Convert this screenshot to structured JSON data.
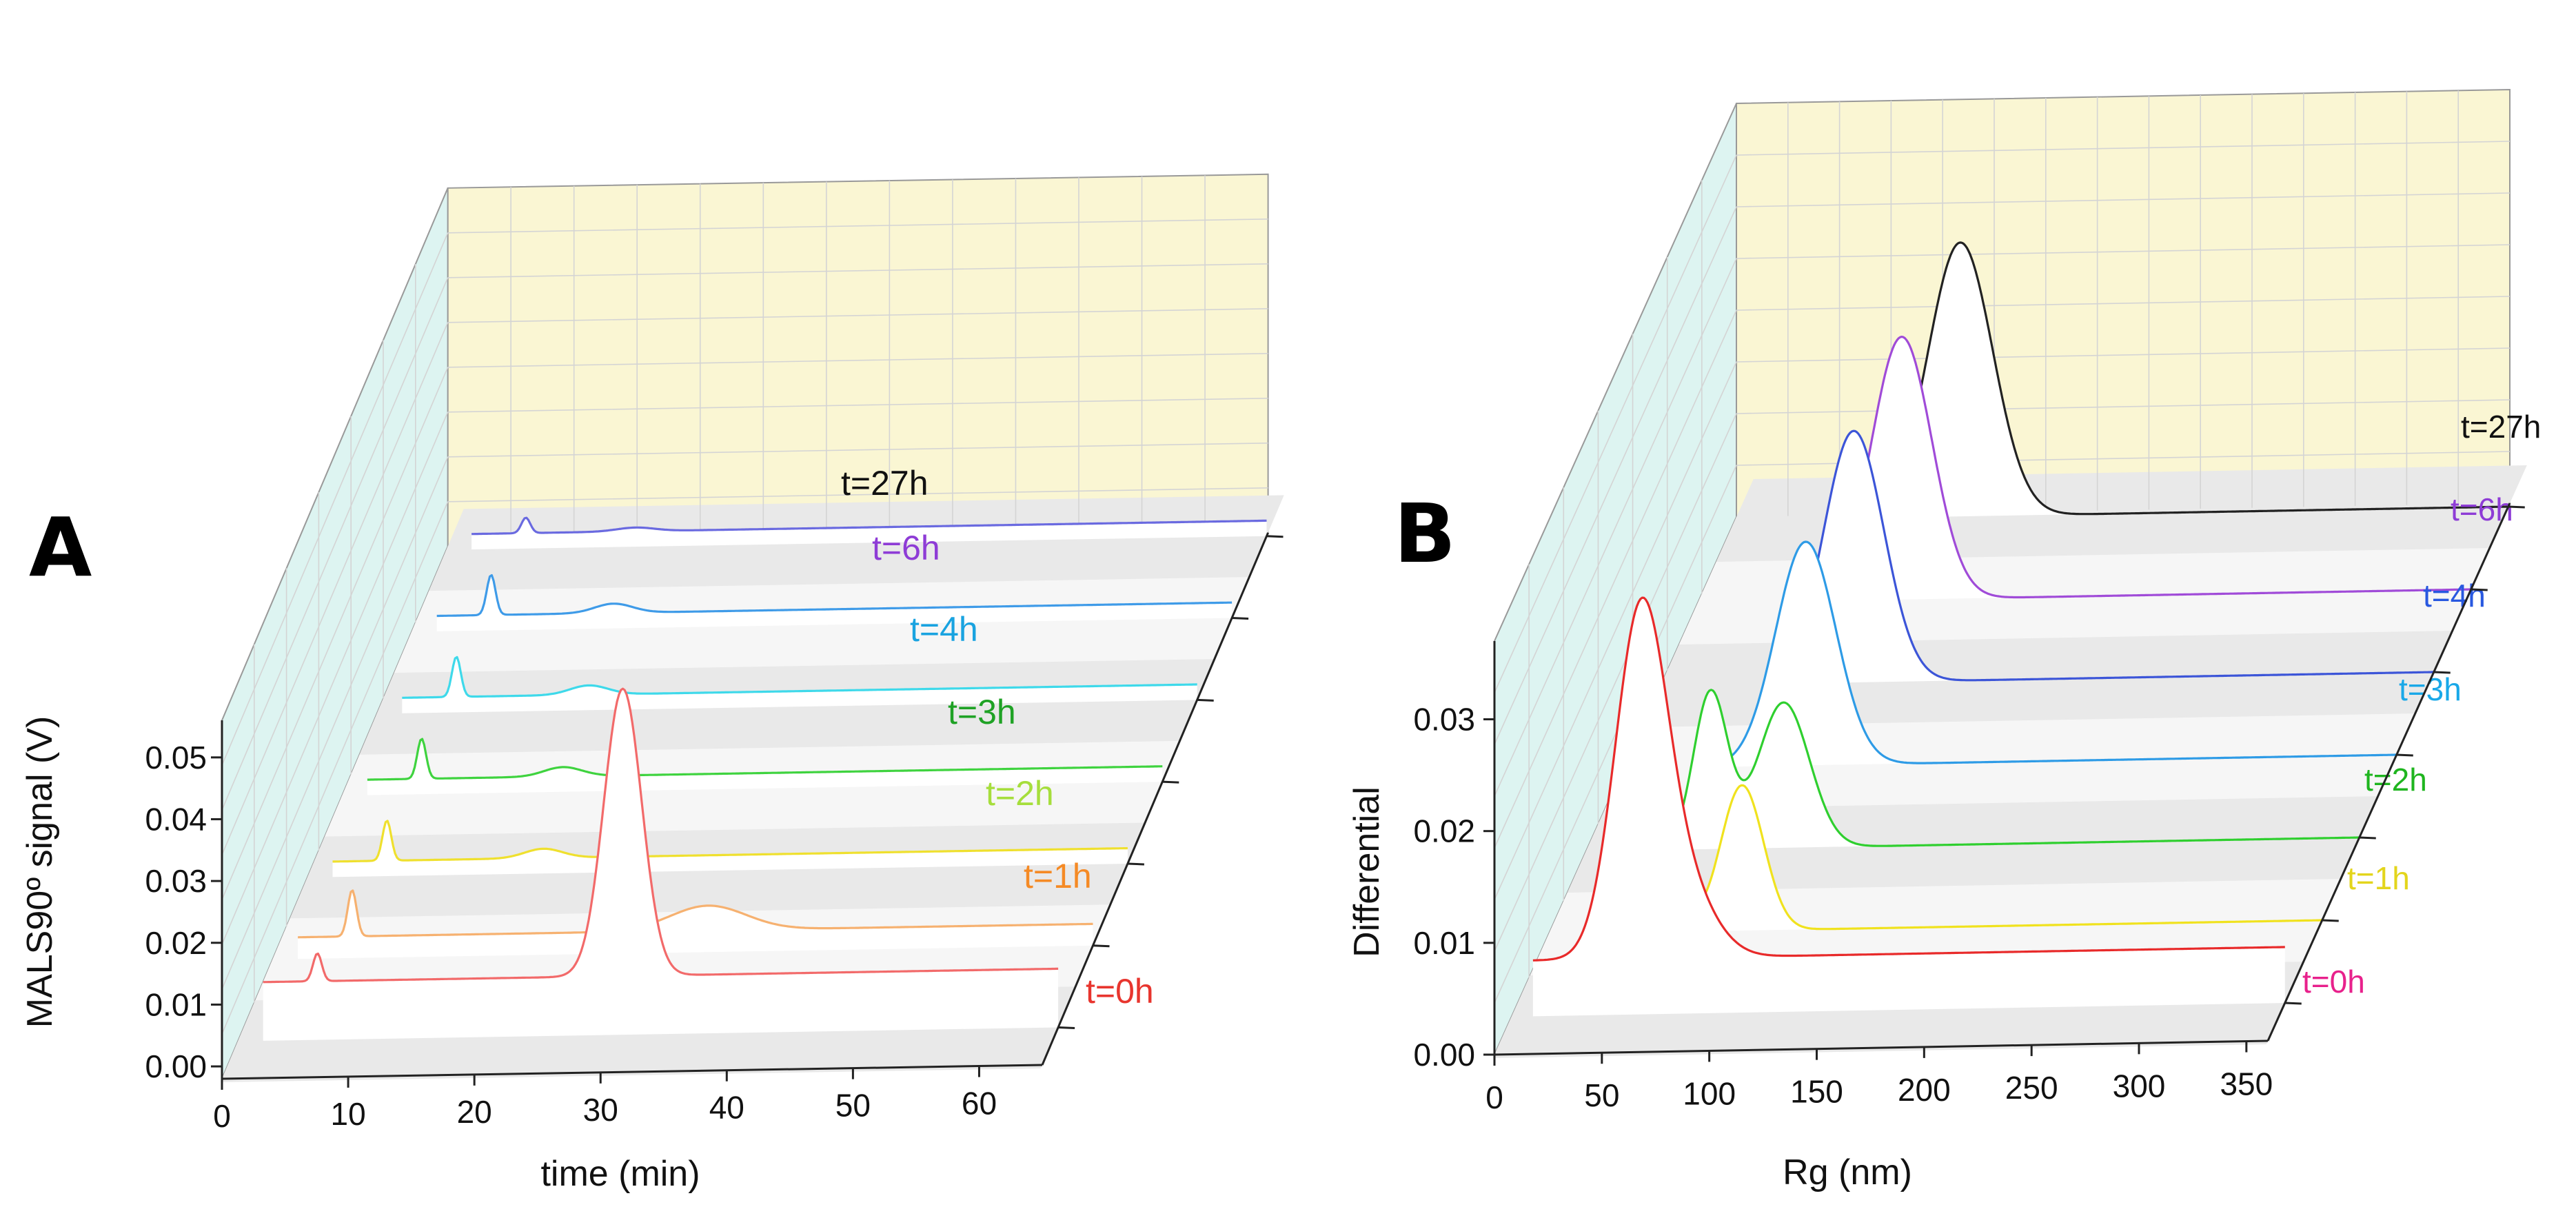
{
  "colors": {
    "back_wall": "#FAF6D3",
    "side_wall": "#DDF4F1",
    "floor": "#F1F1F1",
    "grid": "#D4D4D4",
    "axis": "#222222"
  },
  "chart_data": [
    {
      "panel_label": "A",
      "type": "line",
      "layout": "3d-waterfall",
      "xlabel": "time (min)",
      "ylabel": "MALS90º signal (V)",
      "xlim": [
        0,
        65
      ],
      "ylim": [
        -0.002,
        0.056
      ],
      "x_ticks": [
        "0",
        "10",
        "20",
        "30",
        "40",
        "50",
        "60"
      ],
      "y_ticks": [
        "0.00",
        "0.01",
        "0.02",
        "0.03",
        "0.04",
        "0.05"
      ],
      "series": [
        {
          "name": "t=0h",
          "color": "#F26A6A",
          "label_color": "#E8352E",
          "x_start": 2,
          "baseline": 0.0075,
          "peaks": [
            {
              "x": 6.3,
              "h": 0.0045,
              "w": 0.35
            },
            {
              "x": 30.5,
              "h": 0.0465,
              "w": 1.5
            }
          ]
        },
        {
          "name": "t=1h",
          "color": "#F6B170",
          "label_color": "#F58A25",
          "x_start": 2,
          "baseline": 0.0015,
          "peaks": [
            {
              "x": 6.3,
              "h": 0.0075,
              "w": 0.35
            },
            {
              "x": 34.5,
              "h": 0.004,
              "w": 3.0
            }
          ]
        },
        {
          "name": "t=2h",
          "color": "#EFE02E",
          "label_color": "#A6DE3C",
          "x_start": 2,
          "baseline": 0.0005,
          "peaks": [
            {
              "x": 6.3,
              "h": 0.0065,
              "w": 0.35
            },
            {
              "x": 18.7,
              "h": 0.0015,
              "w": 1.5
            }
          ]
        },
        {
          "name": "t=3h",
          "color": "#3FD33F",
          "label_color": "#1FA225",
          "x_start": 2,
          "baseline": 0.0005,
          "peaks": [
            {
              "x": 6.3,
              "h": 0.0065,
              "w": 0.35
            },
            {
              "x": 17.5,
              "h": 0.0015,
              "w": 1.5
            }
          ]
        },
        {
          "name": "t=4h",
          "color": "#3ED9EA",
          "label_color": "#19A3E0",
          "x_start": 2,
          "baseline": 0.0005,
          "peaks": [
            {
              "x": 6.3,
              "h": 0.0065,
              "w": 0.35
            },
            {
              "x": 16.8,
              "h": 0.0015,
              "w": 1.5
            }
          ]
        },
        {
          "name": "t=6h",
          "color": "#3F9BE8",
          "label_color": "#8E3CD6",
          "x_start": 2,
          "baseline": 0.0005,
          "peaks": [
            {
              "x": 6.3,
              "h": 0.0065,
              "w": 0.35
            },
            {
              "x": 16.0,
              "h": 0.0015,
              "w": 1.5
            }
          ]
        },
        {
          "name": "t=27h",
          "color": "#6A6AE0",
          "label_color": "#111111",
          "x_start": 2,
          "baseline": 0.0005,
          "peaks": [
            {
              "x": 6.3,
              "h": 0.0025,
              "w": 0.35
            },
            {
              "x": 15.0,
              "h": 0.0006,
              "w": 1.5
            }
          ]
        }
      ]
    },
    {
      "panel_label": "B",
      "type": "line",
      "layout": "3d-waterfall",
      "xlabel": "Rg (nm)",
      "ylabel": "Differential",
      "xlim": [
        0,
        360
      ],
      "ylim": [
        0,
        0.037
      ],
      "x_ticks": [
        "0",
        "50",
        "100",
        "150",
        "200",
        "250",
        "300",
        "350"
      ],
      "y_ticks": [
        "0.00",
        "0.01",
        "0.02",
        "0.03"
      ],
      "series": [
        {
          "name": "t=0h",
          "color": "#E82A2A",
          "label_color": "#E8218C",
          "x_start": 10,
          "baseline": 0.005,
          "peaks": [
            {
              "x": 60,
              "h": 0.03,
              "w": 12
            },
            {
              "x": 80,
              "h": 0.006,
              "w": 14
            }
          ]
        },
        {
          "name": "t=1h",
          "color": "#F0E21E",
          "label_color": "#E3D51C",
          "x_start": 25,
          "baseline": 0.0,
          "peaks": [
            {
              "x": 50,
              "h": 0.021,
              "w": 8
            },
            {
              "x": 90,
              "h": 0.013,
              "w": 10
            }
          ]
        },
        {
          "name": "t=2h",
          "color": "#2FCF2F",
          "label_color": "#1FB51F",
          "x_start": 30,
          "baseline": 0.0,
          "peaks": [
            {
              "x": 58,
              "h": 0.014,
              "w": 8
            },
            {
              "x": 92,
              "h": 0.013,
              "w": 12
            }
          ]
        },
        {
          "name": "t=3h",
          "color": "#2E9BE6",
          "label_color": "#19A8E8",
          "x_start": 40,
          "baseline": 0.0,
          "peaks": [
            {
              "x": 85,
              "h": 0.02,
              "w": 14
            }
          ]
        },
        {
          "name": "t=4h",
          "color": "#3C55D8",
          "label_color": "#2858E0",
          "x_start": 50,
          "baseline": 0.0,
          "peaks": [
            {
              "x": 90,
              "h": 0.0225,
              "w": 14
            }
          ]
        },
        {
          "name": "t=6h",
          "color": "#A04BD8",
          "label_color": "#8E3CD6",
          "x_start": 60,
          "baseline": 0.0,
          "peaks": [
            {
              "x": 95,
              "h": 0.0235,
              "w": 14
            }
          ]
        },
        {
          "name": "t=27h",
          "color": "#222222",
          "label_color": "#111111",
          "x_start": 70,
          "baseline": 0.0,
          "peaks": [
            {
              "x": 105,
              "h": 0.0245,
              "w": 15
            }
          ]
        }
      ]
    }
  ]
}
